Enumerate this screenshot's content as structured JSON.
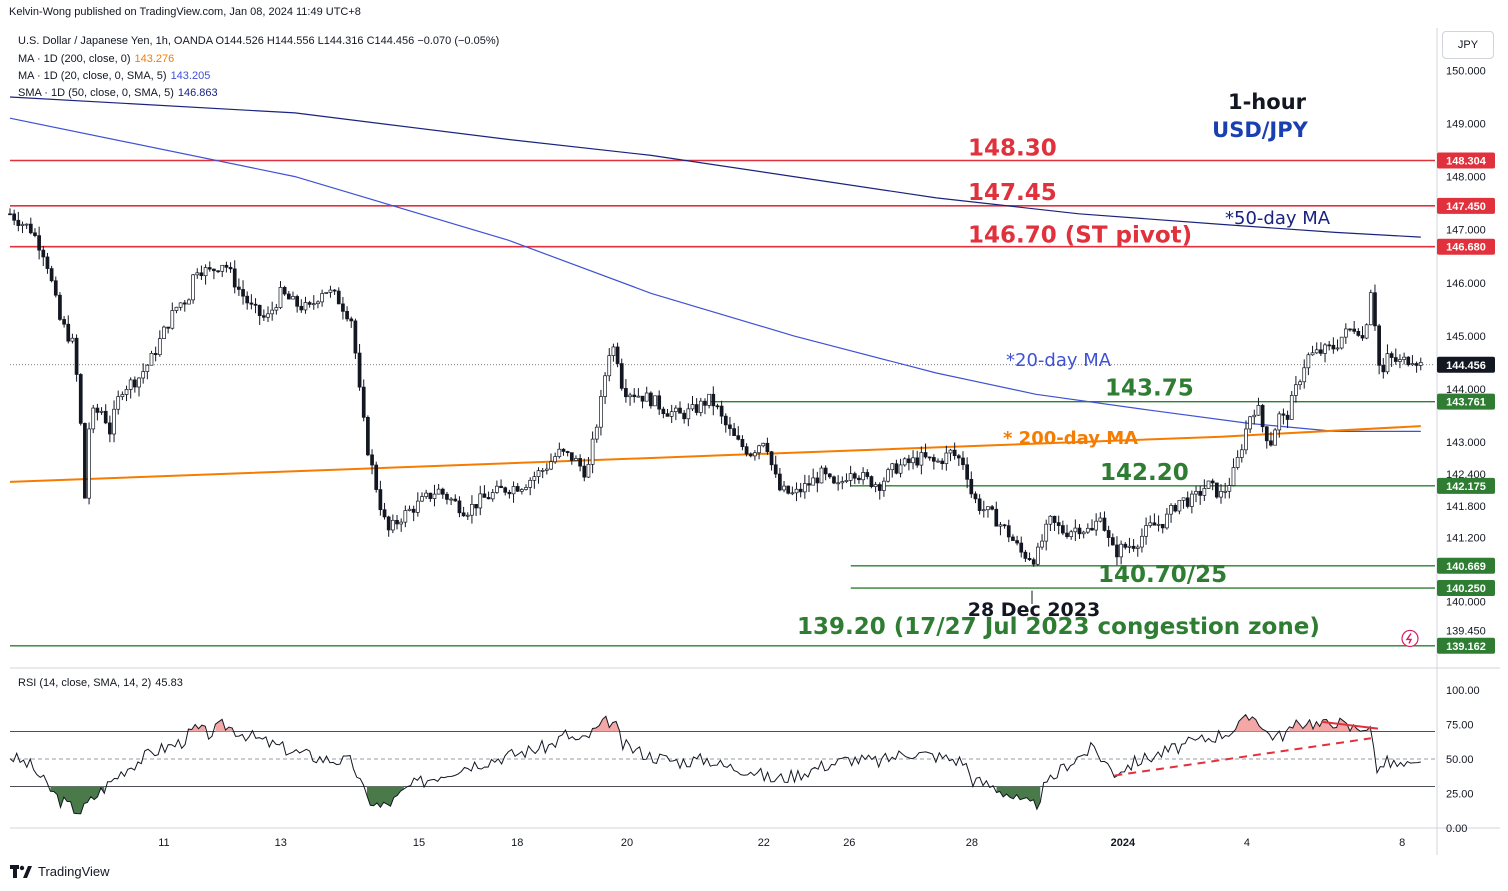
{
  "header": {
    "published": "Kelvin-Wong published on TradingView.com, Jan 08, 2024 11:49 UTC+8"
  },
  "legend": {
    "main": "U.S. Dollar / Japanese Yen, 1h, OANDA  O144.526  H144.556  L144.316  C144.456  −0.070 (−0.05%)",
    "ma200_label": "MA · 1D (200, close, 0)",
    "ma200_value": "143.276",
    "ma20_label": "MA · 1D (20, close, 0, SMA, 5)",
    "ma20_value": "143.205",
    "sma50_label": "SMA · 1D (50, close, 0, SMA, 5)",
    "sma50_value": "146.863",
    "rsi_label": "RSI (14, close, SMA, 14, 2)",
    "rsi_value": "45.83"
  },
  "currency_button": "JPY",
  "footer": {
    "brand": "TradingView"
  },
  "colors": {
    "red": "#e0313c",
    "green": "#2e7d32",
    "ma200": "#f57c00",
    "ma20": "#3f51d5",
    "sma50": "#1a237e",
    "rsi": "#131722"
  },
  "chart_data": {
    "type": "candlestick",
    "symbol": "USD/JPY",
    "timeframe": "1h",
    "y_axis_ticks": [
      "150.000",
      "149.000",
      "148.000",
      "147.000",
      "146.000",
      "145.000",
      "144.000",
      "143.000",
      "142.400",
      "141.800",
      "141.200",
      "140.000",
      "139.450"
    ],
    "ylim": [
      138.8,
      150.8
    ],
    "x_axis_ticks": [
      "11",
      "13",
      "15",
      "18",
      "20",
      "22",
      "26",
      "28",
      "2024",
      "4",
      "8"
    ],
    "last_price": "144.456",
    "price_tags": [
      {
        "label": "148.304",
        "value": 148.304,
        "color": "#e0313c"
      },
      {
        "label": "147.450",
        "value": 147.45,
        "color": "#e0313c"
      },
      {
        "label": "146.680",
        "value": 146.68,
        "color": "#e0313c"
      },
      {
        "label": "144.456",
        "value": 144.456,
        "color": "#131722"
      },
      {
        "label": "143.761",
        "value": 143.761,
        "color": "#2e7d32"
      },
      {
        "label": "142.175",
        "value": 142.175,
        "color": "#2e7d32"
      },
      {
        "label": "140.669",
        "value": 140.669,
        "color": "#2e7d32"
      },
      {
        "label": "140.250",
        "value": 140.25,
        "color": "#2e7d32"
      },
      {
        "label": "139.162",
        "value": 139.162,
        "color": "#2e7d32"
      }
    ],
    "levels": [
      {
        "value": 148.304,
        "color": "#e0313c",
        "label": "148.30",
        "from": 0.0
      },
      {
        "value": 147.45,
        "color": "#e0313c",
        "label": "147.45",
        "from": 0.0
      },
      {
        "value": 146.68,
        "color": "#e0313c",
        "label": "146.70 (ST pivot)",
        "from": 0.0
      },
      {
        "value": 143.761,
        "color": "#2e7d32",
        "label": "143.75",
        "from": 0.49
      },
      {
        "value": 142.175,
        "color": "#2e7d32",
        "label": "142.20",
        "from": 0.59
      },
      {
        "value": 140.669,
        "color": "#2e7d32",
        "label": "140.70/25",
        "from": 0.59
      },
      {
        "value": 140.25,
        "color": "#2e7d32",
        "label": "",
        "from": 0.59
      },
      {
        "value": 139.162,
        "color": "#2e7d32",
        "label": "139.20 (17/27 Jul 2023 congestion zone)",
        "from": 0.0
      }
    ],
    "annotations": {
      "title_1": "1-hour",
      "title_2": "USD/JPY",
      "ma50_note": "*50-day MA",
      "ma20_note": "*20-day MA",
      "ma200_note": "* 200-day MA",
      "low_date": "28 Dec 2023"
    },
    "price_path": [
      [
        0,
        147.3
      ],
      [
        0.015,
        147.0
      ],
      [
        0.025,
        146.5
      ],
      [
        0.035,
        145.3
      ],
      [
        0.045,
        144.8
      ],
      [
        0.05,
        143.2
      ],
      [
        0.052,
        141.7
      ],
      [
        0.056,
        143.5
      ],
      [
        0.065,
        143.6
      ],
      [
        0.07,
        143.2
      ],
      [
        0.078,
        144.0
      ],
      [
        0.09,
        144.2
      ],
      [
        0.1,
        144.6
      ],
      [
        0.11,
        145.2
      ],
      [
        0.118,
        145.6
      ],
      [
        0.125,
        145.7
      ],
      [
        0.13,
        146.3
      ],
      [
        0.14,
        146.2
      ],
      [
        0.15,
        146.4
      ],
      [
        0.16,
        145.9
      ],
      [
        0.17,
        145.5
      ],
      [
        0.18,
        145.3
      ],
      [
        0.19,
        145.8
      ],
      [
        0.2,
        145.6
      ],
      [
        0.21,
        145.5
      ],
      [
        0.22,
        145.9
      ],
      [
        0.23,
        145.7
      ],
      [
        0.24,
        145.3
      ],
      [
        0.245,
        144.0
      ],
      [
        0.25,
        143.0
      ],
      [
        0.255,
        142.4
      ],
      [
        0.26,
        141.8
      ],
      [
        0.265,
        141.3
      ],
      [
        0.275,
        141.6
      ],
      [
        0.285,
        141.8
      ],
      [
        0.3,
        142.1
      ],
      [
        0.31,
        141.9
      ],
      [
        0.32,
        141.7
      ],
      [
        0.33,
        141.9
      ],
      [
        0.345,
        142.1
      ],
      [
        0.36,
        142.2
      ],
      [
        0.375,
        142.5
      ],
      [
        0.385,
        142.8
      ],
      [
        0.395,
        142.7
      ],
      [
        0.405,
        142.4
      ],
      [
        0.41,
        143.1
      ],
      [
        0.415,
        143.8
      ],
      [
        0.42,
        144.7
      ],
      [
        0.425,
        144.8
      ],
      [
        0.43,
        144.0
      ],
      [
        0.44,
        143.9
      ],
      [
        0.45,
        143.8
      ],
      [
        0.46,
        143.6
      ],
      [
        0.47,
        143.5
      ],
      [
        0.48,
        143.6
      ],
      [
        0.49,
        143.8
      ],
      [
        0.495,
        143.7
      ],
      [
        0.5,
        143.4
      ],
      [
        0.51,
        143.0
      ],
      [
        0.52,
        142.8
      ],
      [
        0.53,
        143.1
      ],
      [
        0.535,
        142.5
      ],
      [
        0.54,
        142.1
      ],
      [
        0.55,
        142.0
      ],
      [
        0.56,
        142.2
      ],
      [
        0.57,
        142.4
      ],
      [
        0.58,
        142.1
      ],
      [
        0.59,
        142.5
      ],
      [
        0.6,
        142.3
      ],
      [
        0.61,
        142.2
      ],
      [
        0.62,
        142.5
      ],
      [
        0.63,
        142.6
      ],
      [
        0.64,
        142.7
      ],
      [
        0.65,
        142.6
      ],
      [
        0.66,
        142.8
      ],
      [
        0.67,
        142.6
      ],
      [
        0.675,
        142.0
      ],
      [
        0.68,
        141.8
      ],
      [
        0.69,
        141.6
      ],
      [
        0.7,
        141.3
      ],
      [
        0.71,
        140.9
      ],
      [
        0.72,
        140.8
      ],
      [
        0.725,
        141.2
      ],
      [
        0.73,
        141.5
      ],
      [
        0.74,
        141.3
      ],
      [
        0.75,
        141.4
      ],
      [
        0.76,
        141.3
      ],
      [
        0.765,
        141.7
      ],
      [
        0.77,
        141.2
      ],
      [
        0.775,
        140.9
      ],
      [
        0.78,
        141.0
      ],
      [
        0.79,
        141.1
      ],
      [
        0.8,
        141.4
      ],
      [
        0.81,
        141.5
      ],
      [
        0.82,
        141.9
      ],
      [
        0.83,
        141.9
      ],
      [
        0.84,
        142.2
      ],
      [
        0.85,
        142.0
      ],
      [
        0.855,
        142.2
      ],
      [
        0.86,
        142.5
      ],
      [
        0.865,
        143.0
      ],
      [
        0.87,
        143.5
      ],
      [
        0.875,
        143.7
      ],
      [
        0.88,
        143.2
      ],
      [
        0.885,
        143.0
      ],
      [
        0.89,
        143.5
      ],
      [
        0.895,
        143.4
      ],
      [
        0.9,
        143.8
      ],
      [
        0.905,
        144.2
      ],
      [
        0.91,
        144.6
      ],
      [
        0.92,
        144.7
      ],
      [
        0.93,
        144.8
      ],
      [
        0.935,
        145.0
      ],
      [
        0.94,
        145.1
      ],
      [
        0.945,
        145.2
      ],
      [
        0.95,
        144.9
      ],
      [
        0.955,
        145.9
      ],
      [
        0.96,
        144.8
      ],
      [
        0.962,
        143.9
      ],
      [
        0.965,
        144.6
      ],
      [
        0.975,
        144.5
      ],
      [
        0.985,
        144.6
      ],
      [
        0.99,
        144.46
      ]
    ],
    "ma20_path": [
      [
        0,
        149.1
      ],
      [
        0.2,
        148.0
      ],
      [
        0.35,
        146.8
      ],
      [
        0.45,
        145.8
      ],
      [
        0.55,
        145.0
      ],
      [
        0.65,
        144.3
      ],
      [
        0.72,
        143.9
      ],
      [
        0.8,
        143.6
      ],
      [
        0.87,
        143.35
      ],
      [
        0.93,
        143.2
      ],
      [
        0.99,
        143.2
      ]
    ],
    "sma50_path": [
      [
        0,
        149.5
      ],
      [
        0.2,
        149.2
      ],
      [
        0.35,
        148.7
      ],
      [
        0.45,
        148.4
      ],
      [
        0.55,
        148.0
      ],
      [
        0.65,
        147.6
      ],
      [
        0.75,
        147.3
      ],
      [
        0.85,
        147.1
      ],
      [
        0.93,
        146.95
      ],
      [
        0.99,
        146.86
      ]
    ],
    "ma200_path": [
      [
        0,
        142.25
      ],
      [
        0.5,
        142.75
      ],
      [
        0.7,
        142.95
      ],
      [
        0.85,
        143.1
      ],
      [
        0.99,
        143.3
      ]
    ],
    "rsi": {
      "ylim": [
        0,
        100
      ],
      "ticks": [
        "100.00",
        "75.00",
        "50.00",
        "25.00",
        "0.00"
      ],
      "bands": [
        30,
        50,
        70
      ],
      "path": [
        [
          0,
          52
        ],
        [
          0.015,
          45
        ],
        [
          0.025,
          32
        ],
        [
          0.035,
          20
        ],
        [
          0.045,
          14
        ],
        [
          0.05,
          12
        ],
        [
          0.055,
          18
        ],
        [
          0.065,
          28
        ],
        [
          0.08,
          42
        ],
        [
          0.1,
          55
        ],
        [
          0.12,
          62
        ],
        [
          0.13,
          72
        ],
        [
          0.14,
          68
        ],
        [
          0.15,
          75
        ],
        [
          0.16,
          70
        ],
        [
          0.18,
          62
        ],
        [
          0.2,
          55
        ],
        [
          0.22,
          50
        ],
        [
          0.24,
          48
        ],
        [
          0.245,
          35
        ],
        [
          0.25,
          22
        ],
        [
          0.26,
          15
        ],
        [
          0.27,
          20
        ],
        [
          0.28,
          30
        ],
        [
          0.3,
          38
        ],
        [
          0.32,
          45
        ],
        [
          0.34,
          50
        ],
        [
          0.36,
          55
        ],
        [
          0.38,
          60
        ],
        [
          0.39,
          68
        ],
        [
          0.4,
          62
        ],
        [
          0.41,
          70
        ],
        [
          0.42,
          78
        ],
        [
          0.425,
          74
        ],
        [
          0.43,
          60
        ],
        [
          0.45,
          52
        ],
        [
          0.47,
          48
        ],
        [
          0.49,
          50
        ],
        [
          0.5,
          45
        ],
        [
          0.52,
          42
        ],
        [
          0.535,
          35
        ],
        [
          0.55,
          38
        ],
        [
          0.57,
          45
        ],
        [
          0.59,
          50
        ],
        [
          0.61,
          48
        ],
        [
          0.63,
          55
        ],
        [
          0.65,
          52
        ],
        [
          0.67,
          48
        ],
        [
          0.675,
          35
        ],
        [
          0.69,
          30
        ],
        [
          0.7,
          25
        ],
        [
          0.71,
          18
        ],
        [
          0.72,
          16
        ],
        [
          0.725,
          28
        ],
        [
          0.74,
          45
        ],
        [
          0.76,
          58
        ],
        [
          0.775,
          40
        ],
        [
          0.79,
          48
        ],
        [
          0.81,
          55
        ],
        [
          0.83,
          62
        ],
        [
          0.85,
          68
        ],
        [
          0.86,
          72
        ],
        [
          0.87,
          80
        ],
        [
          0.875,
          82
        ],
        [
          0.88,
          70
        ],
        [
          0.89,
          66
        ],
        [
          0.9,
          72
        ],
        [
          0.91,
          78
        ],
        [
          0.92,
          74
        ],
        [
          0.93,
          78
        ],
        [
          0.94,
          72
        ],
        [
          0.95,
          74
        ],
        [
          0.955,
          70
        ],
        [
          0.96,
          40
        ],
        [
          0.965,
          48
        ],
        [
          0.975,
          45
        ],
        [
          0.985,
          44
        ],
        [
          0.99,
          45.83
        ]
      ]
    }
  }
}
